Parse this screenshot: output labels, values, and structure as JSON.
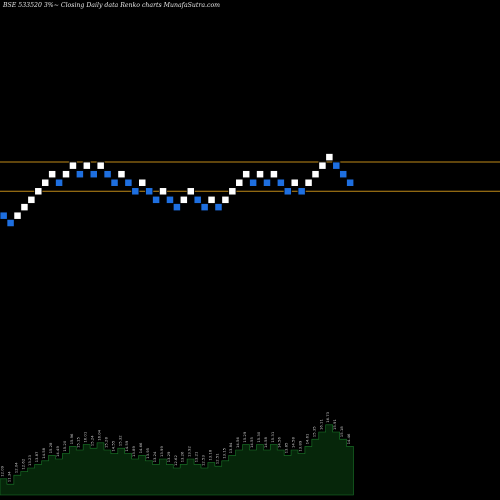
{
  "header": {
    "symbol": "BSE 533520",
    "brick": "3%",
    "description": "Closing Daily data Renko charts MunafaSutra.com"
  },
  "chart_data": {
    "type": "renko",
    "brick_percent": 3,
    "levels": [
      {
        "name": "upper",
        "value": 16.3
      },
      {
        "name": "lower",
        "value": 13.9
      }
    ],
    "colors": {
      "up": "#ffffff",
      "down": "#1e6fe0",
      "level_line": "#c08a18",
      "volume_fill": "#06260a",
      "volume_stroke": "#1a7a2a",
      "label": "#c8c8c8"
    },
    "bricks": [
      {
        "dir": "down",
        "value": 11.9
      },
      {
        "dir": "down",
        "value": 11.3
      },
      {
        "dir": "up",
        "value": 11.9
      },
      {
        "dir": "up",
        "value": 12.6
      },
      {
        "dir": "up",
        "value": 13.2
      },
      {
        "dir": "up",
        "value": 13.9
      },
      {
        "dir": "up",
        "value": 14.6
      },
      {
        "dir": "up",
        "value": 15.3
      },
      {
        "dir": "down",
        "value": 14.6
      },
      {
        "dir": "up",
        "value": 15.3
      },
      {
        "dir": "up",
        "value": 16.0
      },
      {
        "dir": "down",
        "value": 15.3
      },
      {
        "dir": "up",
        "value": 16.0
      },
      {
        "dir": "down",
        "value": 15.3
      },
      {
        "dir": "up",
        "value": 16.0
      },
      {
        "dir": "down",
        "value": 15.3
      },
      {
        "dir": "down",
        "value": 14.6
      },
      {
        "dir": "up",
        "value": 15.3
      },
      {
        "dir": "down",
        "value": 14.6
      },
      {
        "dir": "down",
        "value": 13.9
      },
      {
        "dir": "up",
        "value": 14.6
      },
      {
        "dir": "down",
        "value": 13.9
      },
      {
        "dir": "down",
        "value": 13.2
      },
      {
        "dir": "up",
        "value": 13.9
      },
      {
        "dir": "down",
        "value": 13.2
      },
      {
        "dir": "down",
        "value": 12.6
      },
      {
        "dir": "up",
        "value": 13.2
      },
      {
        "dir": "up",
        "value": 13.9
      },
      {
        "dir": "down",
        "value": 13.2
      },
      {
        "dir": "down",
        "value": 12.6
      },
      {
        "dir": "up",
        "value": 13.2
      },
      {
        "dir": "down",
        "value": 12.6
      },
      {
        "dir": "up",
        "value": 13.2
      },
      {
        "dir": "up",
        "value": 13.9
      },
      {
        "dir": "up",
        "value": 14.6
      },
      {
        "dir": "up",
        "value": 15.3
      },
      {
        "dir": "down",
        "value": 14.6
      },
      {
        "dir": "up",
        "value": 15.3
      },
      {
        "dir": "down",
        "value": 14.6
      },
      {
        "dir": "up",
        "value": 15.3
      },
      {
        "dir": "down",
        "value": 14.6
      },
      {
        "dir": "down",
        "value": 13.9
      },
      {
        "dir": "up",
        "value": 14.6
      },
      {
        "dir": "down",
        "value": 13.9
      },
      {
        "dir": "up",
        "value": 14.6
      },
      {
        "dir": "up",
        "value": 15.3
      },
      {
        "dir": "up",
        "value": 16.0
      },
      {
        "dir": "up",
        "value": 16.7
      },
      {
        "dir": "down",
        "value": 16.0
      },
      {
        "dir": "down",
        "value": 15.3
      },
      {
        "dir": "down",
        "value": 14.6
      }
    ],
    "volume": [
      {
        "label": "12.09",
        "value": 18
      },
      {
        "label": "11.34",
        "value": 12
      },
      {
        "label": "12.04",
        "value": 22
      },
      {
        "label": "12.62",
        "value": 26
      },
      {
        "label": "13.23",
        "value": 30
      },
      {
        "label": "13.87",
        "value": 34
      },
      {
        "label": "14.58",
        "value": 38
      },
      {
        "label": "15.28",
        "value": 44
      },
      {
        "label": "14.49",
        "value": 40
      },
      {
        "label": "15.20",
        "value": 46
      },
      {
        "label": "15.96",
        "value": 54
      },
      {
        "label": "15.15",
        "value": 50
      },
      {
        "label": "16.01",
        "value": 56
      },
      {
        "label": "15.24",
        "value": 52
      },
      {
        "label": "16.04",
        "value": 58
      },
      {
        "label": "15.28",
        "value": 50
      },
      {
        "label": "14.55",
        "value": 46
      },
      {
        "label": "15.32",
        "value": 52
      },
      {
        "label": "14.59",
        "value": 46
      },
      {
        "label": "13.89",
        "value": 40
      },
      {
        "label": "14.66",
        "value": 44
      },
      {
        "label": "13.95",
        "value": 38
      },
      {
        "label": "13.24",
        "value": 34
      },
      {
        "label": "13.99",
        "value": 40
      },
      {
        "label": "13.29",
        "value": 34
      },
      {
        "label": "12.62",
        "value": 30
      },
      {
        "label": "13.26",
        "value": 34
      },
      {
        "label": "13.92",
        "value": 40
      },
      {
        "label": "13.21",
        "value": 34
      },
      {
        "label": "12.53",
        "value": 30
      },
      {
        "label": "13.18",
        "value": 36
      },
      {
        "label": "12.51",
        "value": 32
      },
      {
        "label": "13.15",
        "value": 38
      },
      {
        "label": "13.84",
        "value": 44
      },
      {
        "label": "14.56",
        "value": 50
      },
      {
        "label": "15.29",
        "value": 56
      },
      {
        "label": "14.55",
        "value": 50
      },
      {
        "label": "15.30",
        "value": 56
      },
      {
        "label": "14.58",
        "value": 50
      },
      {
        "label": "15.31",
        "value": 56
      },
      {
        "label": "14.56",
        "value": 50
      },
      {
        "label": "13.85",
        "value": 44
      },
      {
        "label": "14.58",
        "value": 50
      },
      {
        "label": "13.89",
        "value": 46
      },
      {
        "label": "14.61",
        "value": 54
      },
      {
        "label": "15.35",
        "value": 62
      },
      {
        "label": "16.11",
        "value": 70
      },
      {
        "label": "16.73",
        "value": 78
      },
      {
        "label": "15.91",
        "value": 70
      },
      {
        "label": "15.18",
        "value": 62
      },
      {
        "label": "14.46",
        "value": 54
      }
    ]
  }
}
